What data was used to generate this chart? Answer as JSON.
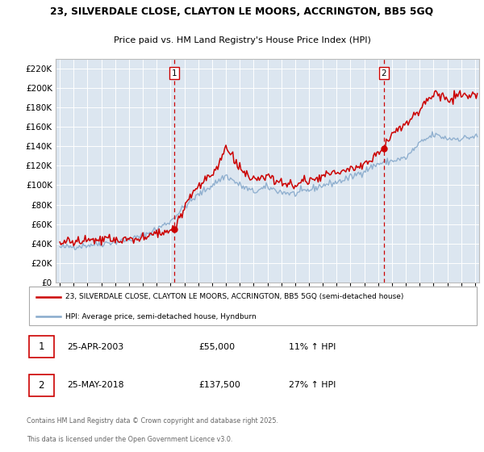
{
  "title1": "23, SILVERDALE CLOSE, CLAYTON LE MOORS, ACCRINGTON, BB5 5GQ",
  "title2": "Price paid vs. HM Land Registry's House Price Index (HPI)",
  "bg_color": "#dce6f0",
  "legend_label_red": "23, SILVERDALE CLOSE, CLAYTON LE MOORS, ACCRINGTON, BB5 5GQ (semi-detached house)",
  "legend_label_blue": "HPI: Average price, semi-detached house, Hyndburn",
  "marker1_x": 2003.29,
  "marker1_label": "25-APR-2003",
  "marker1_price": "£55,000",
  "marker1_hpi": "11% ↑ HPI",
  "marker2_x": 2018.4,
  "marker2_label": "25-MAY-2018",
  "marker2_price": "£137,500",
  "marker2_hpi": "27% ↑ HPI",
  "footer1": "Contains HM Land Registry data © Crown copyright and database right 2025.",
  "footer2": "This data is licensed under the Open Government Licence v3.0.",
  "ymin": 0,
  "ymax": 230000,
  "xmin": 1994.7,
  "xmax": 2025.3,
  "red_color": "#cc0000",
  "blue_color": "#88aacc",
  "dashed_color": "#cc0000",
  "marker_dot_color": "#cc0000",
  "hpi_anchors_x": [
    1995,
    1996,
    1997,
    1998,
    1999,
    2000,
    2001,
    2002,
    2003,
    2004,
    2005,
    2006,
    2007,
    2008,
    2009,
    2010,
    2011,
    2012,
    2013,
    2014,
    2015,
    2016,
    2017,
    2018,
    2019,
    2020,
    2021,
    2022,
    2023,
    2024,
    2025
  ],
  "hpi_anchors_y": [
    36000,
    37000,
    38500,
    40000,
    42000,
    44000,
    48000,
    55000,
    63000,
    78000,
    90000,
    100000,
    110000,
    100000,
    93000,
    98000,
    93000,
    91000,
    95000,
    100000,
    103000,
    108000,
    115000,
    122000,
    125000,
    128000,
    143000,
    152000,
    148000,
    148000,
    150000
  ],
  "prop_anchors_x": [
    1995,
    1996,
    1997,
    1998,
    1999,
    2000,
    2001,
    2002,
    2003.29,
    2004,
    2005,
    2006,
    2007,
    2008,
    2009,
    2010,
    2011,
    2012,
    2013,
    2014,
    2015,
    2016,
    2017,
    2018.4,
    2019,
    2020,
    2021,
    2022,
    2023,
    2024,
    2025
  ],
  "prop_anchors_y": [
    41000,
    42000,
    43000,
    43500,
    44000,
    44500,
    46000,
    50000,
    55000,
    80000,
    100000,
    110000,
    138000,
    118000,
    103000,
    110000,
    102000,
    100000,
    105000,
    110000,
    112000,
    117000,
    122000,
    137500,
    155000,
    162000,
    178000,
    195000,
    188000,
    192000,
    193000
  ],
  "noise_seed": 42,
  "hpi_noise": 1800,
  "prop_noise": 2500,
  "yticks": [
    0,
    20000,
    40000,
    60000,
    80000,
    100000,
    120000,
    140000,
    160000,
    180000,
    200000,
    220000
  ]
}
